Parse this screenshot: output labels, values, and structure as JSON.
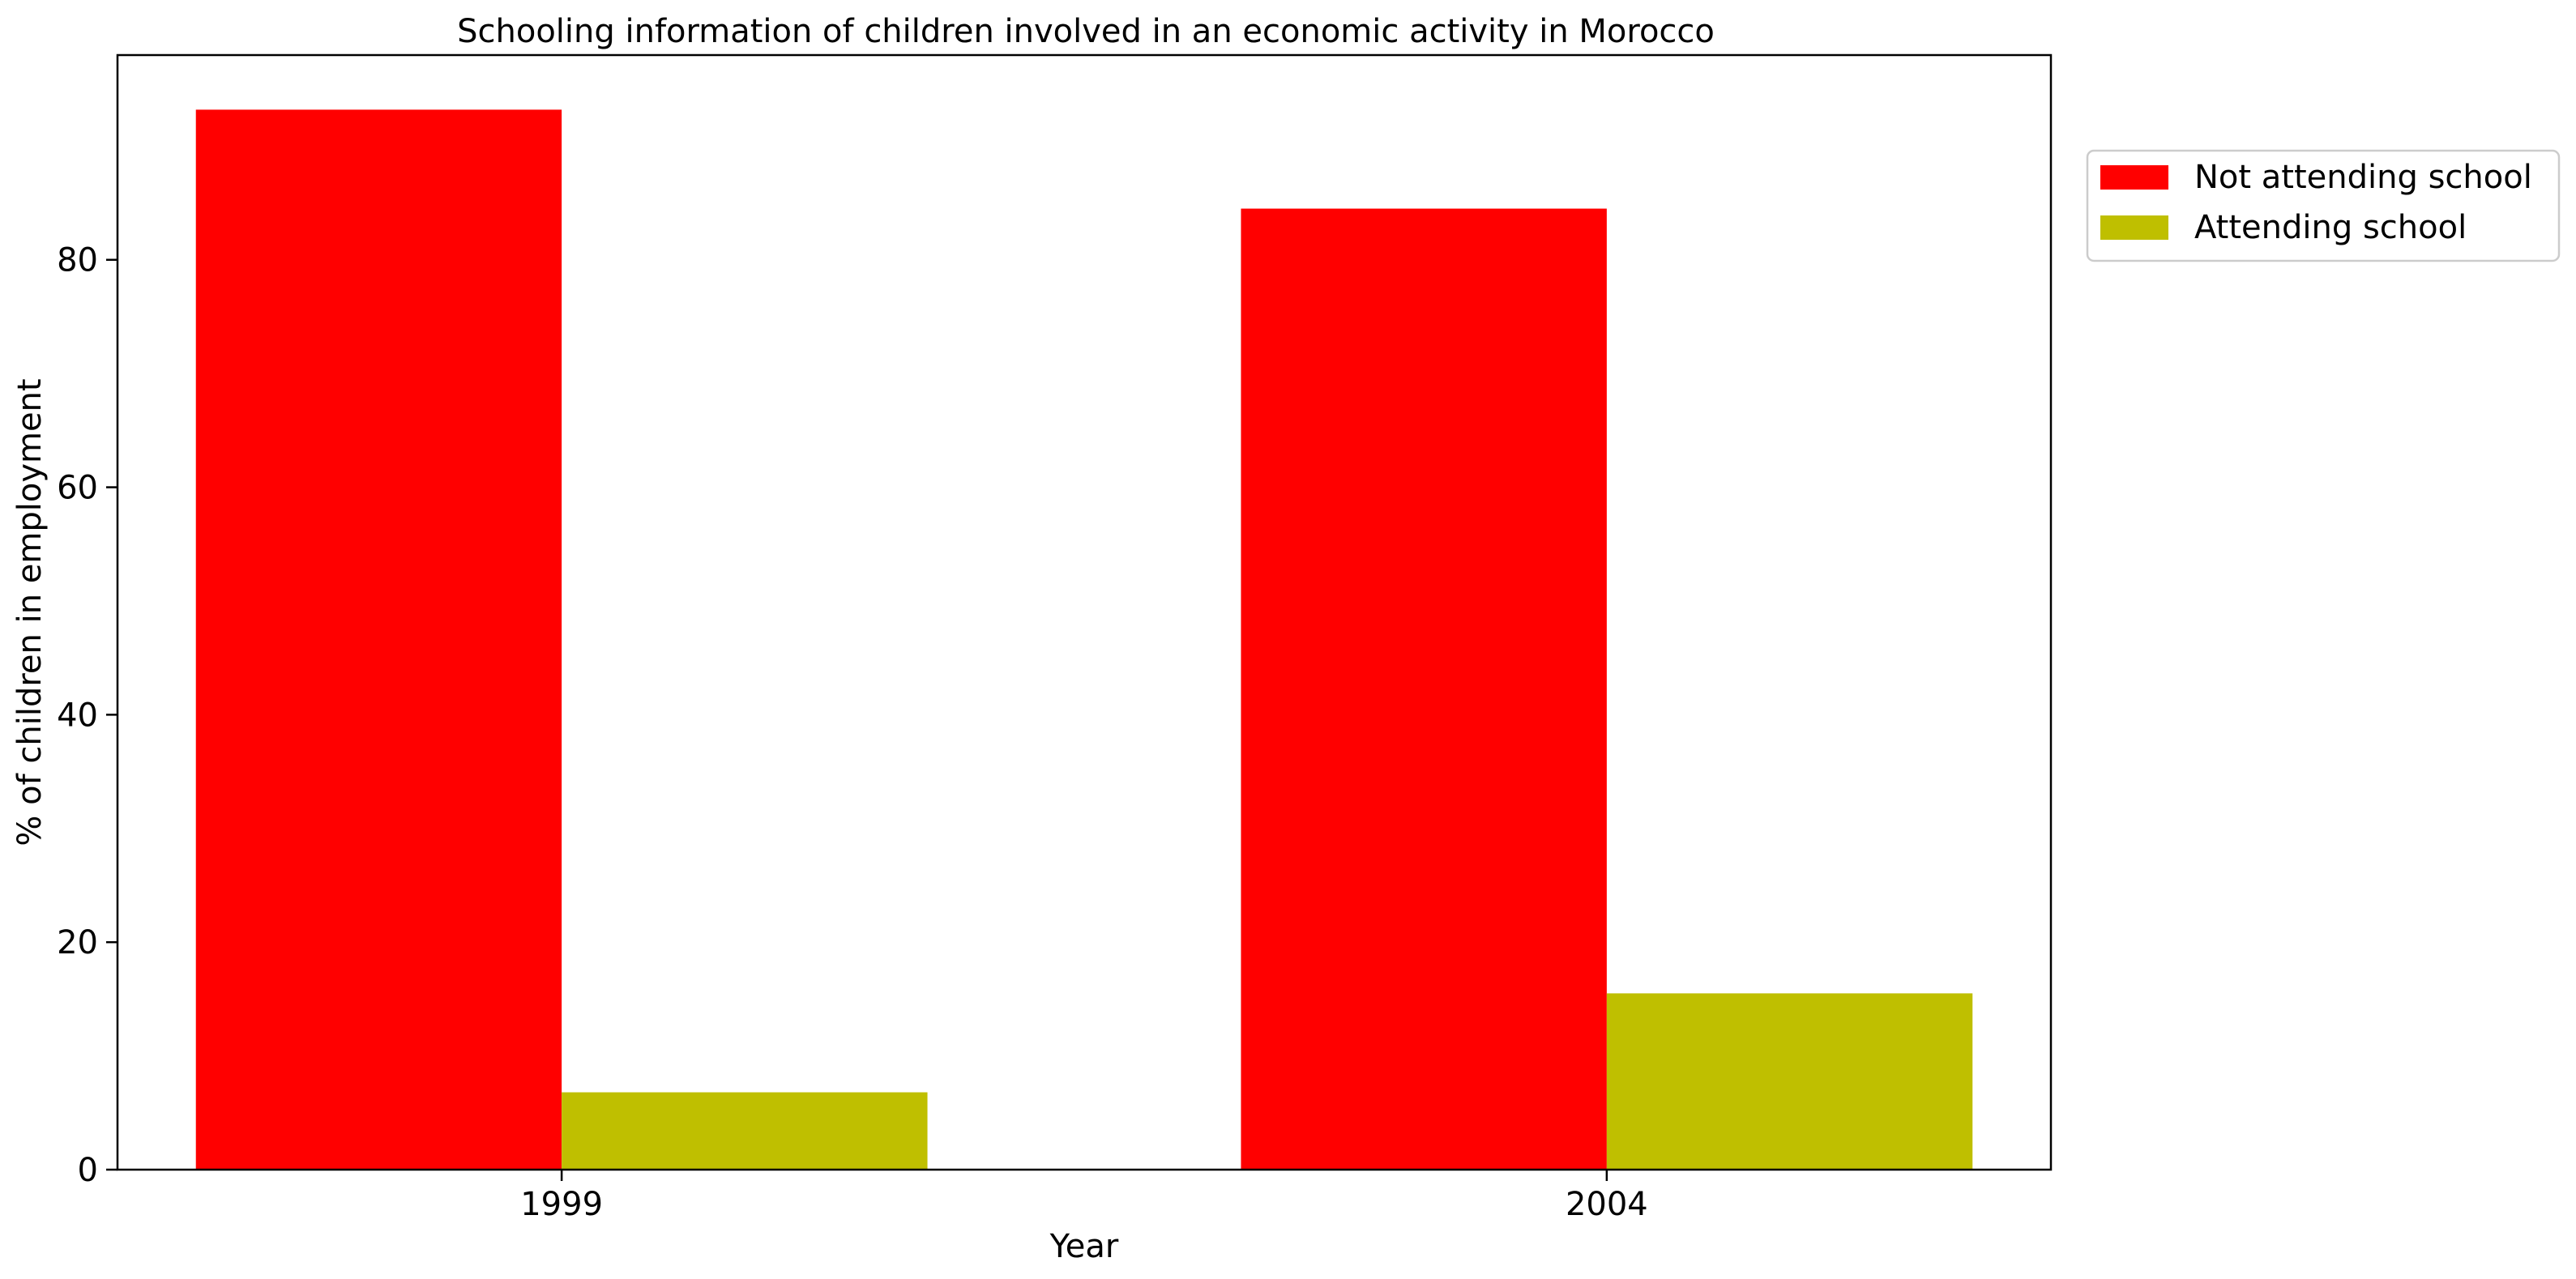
{
  "chart_data": {
    "type": "bar",
    "title": "Schooling information of children involved in an economic activity in Morocco",
    "xlabel": "Year",
    "ylabel": "% of children in employment",
    "categories": [
      "1999",
      "2004"
    ],
    "series": [
      {
        "name": "Not attending school",
        "color": "#ff0000",
        "values": [
          93.2,
          84.5
        ]
      },
      {
        "name": "Attending school",
        "color": "#bfbf00",
        "values": [
          6.8,
          15.5
        ]
      }
    ],
    "ylim": [
      0,
      98
    ],
    "yticks": [
      0,
      20,
      40,
      60,
      80
    ],
    "ytick_labels": [
      "0",
      "20",
      "40",
      "60",
      "80"
    ],
    "grid": false,
    "legend_position": "outside-top-right"
  }
}
